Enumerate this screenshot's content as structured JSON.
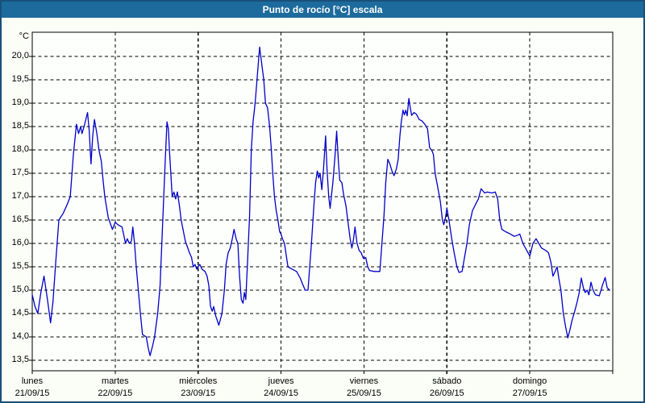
{
  "window": {
    "title": "Punto de rocío [°C] escala"
  },
  "colors": {
    "titlebar_bg": "#1d6b9d",
    "title_text": "#ffffff",
    "outer_border": "#17507a",
    "page_bg": "#fbfdf7",
    "plot_bg": "#fdfffd",
    "grid": "#000000",
    "axis_text": "#000000",
    "line": "#0000c8"
  },
  "chart_data": {
    "type": "line",
    "title": "Punto de rocío [°C] escala",
    "grid": "dashed",
    "legend": "none",
    "y_axis": {
      "unit_label": "°C",
      "min": 13.5,
      "max": 20.0,
      "step": 0.5,
      "decimal_separator": "comma",
      "tick_labels": [
        "20,0",
        "19,5",
        "19,0",
        "18,5",
        "18,0",
        "17,5",
        "17,0",
        "16,5",
        "16,0",
        "15,5",
        "15,0",
        "14,5",
        "14,0",
        "13,5"
      ]
    },
    "x_axis": {
      "total_hours": 168,
      "days": [
        {
          "name": "lunes",
          "date": "21/09/15"
        },
        {
          "name": "martes",
          "date": "22/09/15"
        },
        {
          "name": "miércoles",
          "date": "23/09/15"
        },
        {
          "name": "jueves",
          "date": "24/09/15"
        },
        {
          "name": "viernes",
          "date": "25/09/15"
        },
        {
          "name": "sábado",
          "date": "26/09/15"
        },
        {
          "name": "domingo",
          "date": "27/09/15"
        }
      ]
    },
    "series": [
      {
        "name": "Punto de rocío",
        "color": "#0000c8",
        "points": [
          [
            0,
            14.9
          ],
          [
            0.8,
            14.65
          ],
          [
            1.6,
            14.5
          ],
          [
            2.5,
            14.95
          ],
          [
            3.4,
            15.3
          ],
          [
            4.4,
            14.8
          ],
          [
            5.3,
            14.3
          ],
          [
            6,
            14.75
          ],
          [
            6.8,
            15.6
          ],
          [
            7.7,
            16.5
          ],
          [
            9,
            16.65
          ],
          [
            10.2,
            16.85
          ],
          [
            11,
            17
          ],
          [
            11.9,
            17.9
          ],
          [
            12.8,
            18.55
          ],
          [
            13.4,
            18.35
          ],
          [
            14,
            18.5
          ],
          [
            14.4,
            18.35
          ],
          [
            15,
            18.5
          ],
          [
            16,
            18.8
          ],
          [
            16.5,
            18.4
          ],
          [
            17,
            17.7
          ],
          [
            17.5,
            18.3
          ],
          [
            18,
            18.65
          ],
          [
            18.7,
            18.35
          ],
          [
            19.3,
            18
          ],
          [
            20,
            17.75
          ],
          [
            20.5,
            17.35
          ],
          [
            21,
            17
          ],
          [
            22,
            16.55
          ],
          [
            23.2,
            16.3
          ],
          [
            24,
            16.45
          ],
          [
            24.8,
            16.4
          ],
          [
            26,
            16.35
          ],
          [
            27,
            16
          ],
          [
            27.5,
            16.1
          ],
          [
            28.1,
            16
          ],
          [
            28.7,
            16.05
          ],
          [
            29.1,
            16.35
          ],
          [
            29.6,
            16
          ],
          [
            30.1,
            15.5
          ],
          [
            30.7,
            15
          ],
          [
            31.3,
            14.5
          ],
          [
            31.9,
            14.05
          ],
          [
            33,
            14
          ],
          [
            33.6,
            13.75
          ],
          [
            34.1,
            13.6
          ],
          [
            34.8,
            13.8
          ],
          [
            35.4,
            14
          ],
          [
            36.3,
            14.5
          ],
          [
            37,
            15.1
          ],
          [
            37.5,
            16
          ],
          [
            38,
            16.9
          ],
          [
            38.5,
            17.8
          ],
          [
            39,
            18.6
          ],
          [
            39.4,
            18.45
          ],
          [
            39.7,
            18
          ],
          [
            40.1,
            17.5
          ],
          [
            40.5,
            17
          ],
          [
            41,
            17.1
          ],
          [
            41.5,
            16.95
          ],
          [
            42,
            17.1
          ],
          [
            42.6,
            16.8
          ],
          [
            43.1,
            16.5
          ],
          [
            44.3,
            16.05
          ],
          [
            45.5,
            15.8
          ],
          [
            46.1,
            15.7
          ],
          [
            46.6,
            15.5
          ],
          [
            47.1,
            15.55
          ],
          [
            47.6,
            15.45
          ],
          [
            48,
            15.5
          ],
          [
            48.5,
            15.55
          ],
          [
            49.1,
            15.45
          ],
          [
            50,
            15.4
          ],
          [
            50.6,
            15.3
          ],
          [
            51.1,
            15.1
          ],
          [
            51.6,
            14.65
          ],
          [
            52.1,
            14.55
          ],
          [
            52.5,
            14.65
          ],
          [
            53.1,
            14.45
          ],
          [
            54,
            14.25
          ],
          [
            54.9,
            14.5
          ],
          [
            55.6,
            15
          ],
          [
            56.1,
            15.55
          ],
          [
            56.7,
            15.8
          ],
          [
            57.3,
            15.9
          ],
          [
            57.9,
            16.1
          ],
          [
            58.4,
            16.3
          ],
          [
            59,
            16.1
          ],
          [
            59.5,
            16
          ],
          [
            60,
            15.3
          ],
          [
            60.5,
            14.8
          ],
          [
            61,
            14.72
          ],
          [
            61.4,
            14.95
          ],
          [
            61.8,
            14.8
          ],
          [
            62.3,
            15.6
          ],
          [
            62.9,
            16.6
          ],
          [
            63.4,
            18
          ],
          [
            63.9,
            18.6
          ],
          [
            64.5,
            19
          ],
          [
            65.1,
            19.55
          ],
          [
            65.8,
            20.2
          ],
          [
            66.4,
            19.85
          ],
          [
            67,
            19.5
          ],
          [
            67.5,
            19
          ],
          [
            68.1,
            18.9
          ],
          [
            68.7,
            18.5
          ],
          [
            69.2,
            18
          ],
          [
            69.6,
            17.5
          ],
          [
            70.1,
            17
          ],
          [
            70.6,
            16.7
          ],
          [
            71.1,
            16.5
          ],
          [
            71.6,
            16.25
          ],
          [
            72,
            16.2
          ],
          [
            72.4,
            16.1
          ],
          [
            73,
            16
          ],
          [
            74,
            15.5
          ],
          [
            75.2,
            15.45
          ],
          [
            76.5,
            15.4
          ],
          [
            77.6,
            15.25
          ],
          [
            78.4,
            15.1
          ],
          [
            79,
            15
          ],
          [
            79.8,
            15
          ],
          [
            80.3,
            15.5
          ],
          [
            80.8,
            16
          ],
          [
            81.5,
            16.8
          ],
          [
            82,
            17.3
          ],
          [
            82.5,
            17.55
          ],
          [
            82.9,
            17.4
          ],
          [
            83.3,
            17.5
          ],
          [
            83.8,
            17.15
          ],
          [
            84.3,
            17.6
          ],
          [
            84.9,
            18.3
          ],
          [
            85.3,
            17.6
          ],
          [
            85.8,
            17
          ],
          [
            86.2,
            16.75
          ],
          [
            87,
            17.3
          ],
          [
            87.6,
            17.85
          ],
          [
            88.1,
            18.4
          ],
          [
            88.6,
            17.75
          ],
          [
            89,
            17.35
          ],
          [
            89.6,
            17.3
          ],
          [
            90.1,
            17.05
          ],
          [
            90.8,
            16.8
          ],
          [
            91.3,
            16.5
          ],
          [
            92,
            16.1
          ],
          [
            92.5,
            15.9
          ],
          [
            93,
            16.1
          ],
          [
            93.4,
            16.35
          ],
          [
            94,
            16
          ],
          [
            94.6,
            15.85
          ],
          [
            95.2,
            15.8
          ],
          [
            95.7,
            15.7
          ],
          [
            96,
            15.67
          ],
          [
            96.5,
            15.7
          ],
          [
            97.1,
            15.5
          ],
          [
            97.6,
            15.42
          ],
          [
            99,
            15.4
          ],
          [
            100.6,
            15.4
          ],
          [
            101.2,
            16
          ],
          [
            101.8,
            16.6
          ],
          [
            102.3,
            17.3
          ],
          [
            102.9,
            17.8
          ],
          [
            103.5,
            17.7
          ],
          [
            104.1,
            17.55
          ],
          [
            104.7,
            17.45
          ],
          [
            105.4,
            17.6
          ],
          [
            105.9,
            17.8
          ],
          [
            106.4,
            18.3
          ],
          [
            106.8,
            18.6
          ],
          [
            107.3,
            18.85
          ],
          [
            107.7,
            18.75
          ],
          [
            108.1,
            18.85
          ],
          [
            108.5,
            18.73
          ],
          [
            109,
            19.1
          ],
          [
            109.4,
            18.9
          ],
          [
            109.8,
            18.74
          ],
          [
            110.5,
            18.8
          ],
          [
            111.2,
            18.76
          ],
          [
            112,
            18.65
          ],
          [
            112.8,
            18.62
          ],
          [
            113.6,
            18.55
          ],
          [
            114.4,
            18.45
          ],
          [
            115,
            18.05
          ],
          [
            115.7,
            17.98
          ],
          [
            116.1,
            17.9
          ],
          [
            116.6,
            17.5
          ],
          [
            117.1,
            17.3
          ],
          [
            117.6,
            17.1
          ],
          [
            118.1,
            16.9
          ],
          [
            118.7,
            16.5
          ],
          [
            119.1,
            16.4
          ],
          [
            119.6,
            16.55
          ],
          [
            120,
            16.75
          ],
          [
            120.6,
            16.5
          ],
          [
            121.4,
            16.1
          ],
          [
            122.1,
            15.8
          ],
          [
            122.9,
            15.5
          ],
          [
            123.5,
            15.38
          ],
          [
            124.4,
            15.4
          ],
          [
            125.1,
            15.7
          ],
          [
            125.8,
            16
          ],
          [
            126.5,
            16.4
          ],
          [
            127.4,
            16.7
          ],
          [
            128.4,
            16.85
          ],
          [
            129.1,
            16.95
          ],
          [
            129.9,
            17.17
          ],
          [
            130.9,
            17.08
          ],
          [
            131.7,
            17.1
          ],
          [
            133,
            17.08
          ],
          [
            134,
            17.1
          ],
          [
            134.7,
            16.95
          ],
          [
            135.3,
            16.5
          ],
          [
            135.9,
            16.3
          ],
          [
            137,
            16.25
          ],
          [
            138.4,
            16.2
          ],
          [
            139.5,
            16.15
          ],
          [
            140.6,
            16.18
          ],
          [
            141.1,
            16.2
          ],
          [
            142,
            16
          ],
          [
            143.1,
            15.85
          ],
          [
            144,
            15.73
          ],
          [
            144.9,
            16
          ],
          [
            145.8,
            16.1
          ],
          [
            146.6,
            16
          ],
          [
            147.4,
            15.9
          ],
          [
            148.6,
            15.85
          ],
          [
            149.4,
            15.8
          ],
          [
            150.1,
            15.6
          ],
          [
            150.7,
            15.3
          ],
          [
            151.2,
            15.38
          ],
          [
            151.9,
            15.5
          ],
          [
            152.4,
            15.25
          ],
          [
            153,
            15
          ],
          [
            153.7,
            14.5
          ],
          [
            154.4,
            14.2
          ],
          [
            155,
            13.98
          ],
          [
            155.6,
            14.15
          ],
          [
            156.2,
            14.35
          ],
          [
            157,
            14.55
          ],
          [
            157.7,
            14.75
          ],
          [
            158.3,
            14.95
          ],
          [
            158.9,
            15.26
          ],
          [
            159.5,
            15.05
          ],
          [
            160,
            14.95
          ],
          [
            160.6,
            15
          ],
          [
            161.1,
            14.9
          ],
          [
            161.7,
            15.17
          ],
          [
            162.3,
            15
          ],
          [
            163,
            14.9
          ],
          [
            164.1,
            14.88
          ],
          [
            165,
            15.1
          ],
          [
            165.8,
            15.27
          ],
          [
            166.4,
            15.05
          ],
          [
            167.1,
            15
          ]
        ]
      }
    ]
  }
}
